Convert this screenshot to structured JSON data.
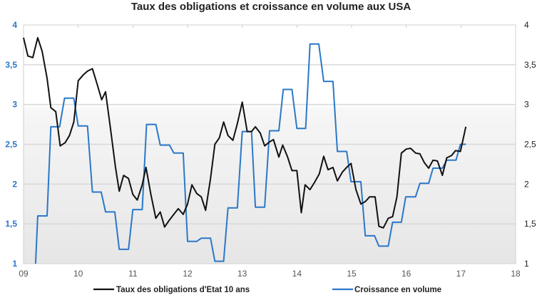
{
  "chart_data": {
    "type": "line",
    "title": "Taux des obligations et croissance en volume aux USA",
    "xlim": [
      2009,
      2018
    ],
    "x_ticks": [
      "09",
      "10",
      "11",
      "12",
      "13",
      "14",
      "15",
      "16",
      "17",
      "18"
    ],
    "ylim_left": [
      1,
      4
    ],
    "ylim_right": [
      1,
      4
    ],
    "y_ticks_left": [
      "1",
      "1,5",
      "2",
      "2,5",
      "3",
      "3,5",
      "4"
    ],
    "y_ticks_right": [
      "1",
      "1,5",
      "2",
      "2,5",
      "3",
      "3,5",
      "4"
    ],
    "grid": true,
    "legend_position": "bottom",
    "series": [
      {
        "name": "Taux des obligations d'Etat 10 ans",
        "color": "#111111",
        "points": [
          [
            2009.0,
            3.84
          ],
          [
            2009.08,
            3.61
          ],
          [
            2009.17,
            3.59
          ],
          [
            2009.26,
            3.84
          ],
          [
            2009.34,
            3.67
          ],
          [
            2009.43,
            3.33
          ],
          [
            2009.5,
            2.96
          ],
          [
            2009.59,
            2.91
          ],
          [
            2009.67,
            2.48
          ],
          [
            2009.76,
            2.52
          ],
          [
            2009.84,
            2.61
          ],
          [
            2009.92,
            2.78
          ],
          [
            2010.0,
            3.3
          ],
          [
            2010.09,
            3.37
          ],
          [
            2010.17,
            3.42
          ],
          [
            2010.26,
            3.45
          ],
          [
            2010.34,
            3.27
          ],
          [
            2010.43,
            3.06
          ],
          [
            2010.5,
            3.16
          ],
          [
            2010.59,
            2.7
          ],
          [
            2010.68,
            2.22
          ],
          [
            2010.75,
            1.91
          ],
          [
            2010.83,
            2.11
          ],
          [
            2010.92,
            2.07
          ],
          [
            2011.0,
            1.87
          ],
          [
            2011.08,
            1.8
          ],
          [
            2011.17,
            1.99
          ],
          [
            2011.24,
            2.21
          ],
          [
            2011.33,
            1.87
          ],
          [
            2011.42,
            1.57
          ],
          [
            2011.5,
            1.65
          ],
          [
            2011.58,
            1.46
          ],
          [
            2011.67,
            1.55
          ],
          [
            2011.76,
            1.63
          ],
          [
            2011.83,
            1.69
          ],
          [
            2011.92,
            1.62
          ],
          [
            2012.0,
            1.75
          ],
          [
            2012.08,
            1.99
          ],
          [
            2012.17,
            1.88
          ],
          [
            2012.25,
            1.84
          ],
          [
            2012.33,
            1.67
          ],
          [
            2012.42,
            2.07
          ],
          [
            2012.5,
            2.5
          ],
          [
            2012.58,
            2.58
          ],
          [
            2012.66,
            2.78
          ],
          [
            2012.74,
            2.61
          ],
          [
            2012.83,
            2.55
          ],
          [
            2012.91,
            2.76
          ],
          [
            2013.0,
            3.03
          ],
          [
            2013.09,
            2.66
          ],
          [
            2013.17,
            2.66
          ],
          [
            2013.24,
            2.72
          ],
          [
            2013.33,
            2.64
          ],
          [
            2013.41,
            2.48
          ],
          [
            2013.5,
            2.53
          ],
          [
            2013.57,
            2.56
          ],
          [
            2013.67,
            2.34
          ],
          [
            2013.74,
            2.49
          ],
          [
            2013.83,
            2.34
          ],
          [
            2013.91,
            2.17
          ],
          [
            2014.0,
            2.17
          ],
          [
            2014.08,
            1.64
          ],
          [
            2014.15,
            1.99
          ],
          [
            2014.24,
            1.93
          ],
          [
            2014.33,
            2.03
          ],
          [
            2014.41,
            2.13
          ],
          [
            2014.49,
            2.35
          ],
          [
            2014.57,
            2.18
          ],
          [
            2014.66,
            2.21
          ],
          [
            2014.74,
            2.04
          ],
          [
            2014.83,
            2.15
          ],
          [
            2014.91,
            2.21
          ],
          [
            2014.99,
            2.26
          ],
          [
            2015.08,
            1.93
          ],
          [
            2015.17,
            1.75
          ],
          [
            2015.25,
            1.78
          ],
          [
            2015.33,
            1.84
          ],
          [
            2015.43,
            1.84
          ],
          [
            2015.5,
            1.47
          ],
          [
            2015.58,
            1.45
          ],
          [
            2015.67,
            1.57
          ],
          [
            2015.75,
            1.59
          ],
          [
            2015.83,
            1.84
          ],
          [
            2015.91,
            2.39
          ],
          [
            2016.0,
            2.44
          ],
          [
            2016.08,
            2.45
          ],
          [
            2016.17,
            2.39
          ],
          [
            2016.25,
            2.38
          ],
          [
            2016.33,
            2.27
          ],
          [
            2016.41,
            2.2
          ],
          [
            2016.49,
            2.3
          ],
          [
            2016.57,
            2.29
          ],
          [
            2016.66,
            2.11
          ],
          [
            2016.74,
            2.33
          ],
          [
            2016.83,
            2.36
          ],
          [
            2016.9,
            2.42
          ],
          [
            2016.99,
            2.41
          ],
          [
            2017.09,
            2.72
          ]
        ]
      },
      {
        "name": "Croissance en volume",
        "color": "#2a78c8",
        "points": [
          [
            2009.22,
            1.0
          ],
          [
            2009.26,
            1.6
          ],
          [
            2009.43,
            1.6
          ],
          [
            2009.5,
            2.72
          ],
          [
            2009.66,
            2.72
          ],
          [
            2009.75,
            3.08
          ],
          [
            2009.92,
            3.08
          ],
          [
            2010.0,
            2.73
          ],
          [
            2010.17,
            2.73
          ],
          [
            2010.26,
            1.9
          ],
          [
            2010.42,
            1.9
          ],
          [
            2010.5,
            1.65
          ],
          [
            2010.67,
            1.65
          ],
          [
            2010.75,
            1.18
          ],
          [
            2010.92,
            1.18
          ],
          [
            2011.0,
            1.68
          ],
          [
            2011.17,
            1.68
          ],
          [
            2011.25,
            2.75
          ],
          [
            2011.42,
            2.75
          ],
          [
            2011.5,
            2.49
          ],
          [
            2011.67,
            2.49
          ],
          [
            2011.75,
            2.39
          ],
          [
            2011.92,
            2.39
          ],
          [
            2012.0,
            1.28
          ],
          [
            2012.17,
            1.28
          ],
          [
            2012.25,
            1.32
          ],
          [
            2012.42,
            1.32
          ],
          [
            2012.5,
            1.03
          ],
          [
            2012.66,
            1.03
          ],
          [
            2012.74,
            1.7
          ],
          [
            2012.91,
            1.7
          ],
          [
            2013.0,
            2.66
          ],
          [
            2013.17,
            2.66
          ],
          [
            2013.24,
            1.71
          ],
          [
            2013.41,
            1.71
          ],
          [
            2013.5,
            2.67
          ],
          [
            2013.67,
            2.67
          ],
          [
            2013.75,
            3.19
          ],
          [
            2013.91,
            3.19
          ],
          [
            2014.0,
            2.7
          ],
          [
            2014.16,
            2.7
          ],
          [
            2014.24,
            3.76
          ],
          [
            2014.4,
            3.76
          ],
          [
            2014.49,
            3.29
          ],
          [
            2014.66,
            3.29
          ],
          [
            2014.74,
            2.41
          ],
          [
            2014.91,
            2.41
          ],
          [
            2014.99,
            2.03
          ],
          [
            2015.17,
            2.03
          ],
          [
            2015.25,
            1.35
          ],
          [
            2015.42,
            1.35
          ],
          [
            2015.5,
            1.22
          ],
          [
            2015.67,
            1.22
          ],
          [
            2015.75,
            1.52
          ],
          [
            2015.91,
            1.52
          ],
          [
            2015.99,
            1.84
          ],
          [
            2016.17,
            1.84
          ],
          [
            2016.25,
            2.01
          ],
          [
            2016.41,
            2.01
          ],
          [
            2016.49,
            2.2
          ],
          [
            2016.66,
            2.2
          ],
          [
            2016.74,
            2.3
          ],
          [
            2016.91,
            2.3
          ],
          [
            2016.99,
            2.5
          ],
          [
            2017.09,
            2.5
          ]
        ]
      }
    ],
    "colors": {
      "left_axis": "#2a78c8",
      "right_axis": "#222222",
      "grid": "#d8d8d8"
    }
  }
}
